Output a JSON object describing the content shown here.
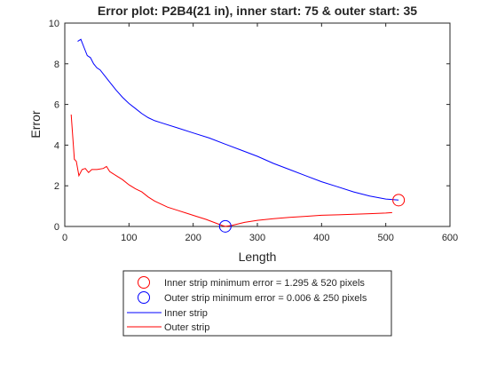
{
  "chart_data": {
    "type": "line",
    "title": "Error plot: P2B4(21 in), inner start: 75 & outer start: 35",
    "xlabel": "Length",
    "ylabel": "Error",
    "xlim": [
      0,
      600
    ],
    "ylim": [
      0,
      10
    ],
    "x_ticks": [
      0,
      100,
      200,
      300,
      400,
      500,
      600
    ],
    "y_ticks": [
      0,
      2,
      4,
      6,
      8,
      10
    ],
    "grid": false,
    "legend_position": "bottom-outside",
    "colors": {
      "inner": "#0000ff",
      "outer": "#ff0000",
      "axes": "#262626"
    },
    "series": [
      {
        "name": "Inner strip",
        "color": "#0000ff",
        "points": [
          [
            20,
            9.1
          ],
          [
            25,
            9.2
          ],
          [
            30,
            8.8
          ],
          [
            35,
            8.4
          ],
          [
            40,
            8.3
          ],
          [
            45,
            8.0
          ],
          [
            50,
            7.8
          ],
          [
            55,
            7.7
          ],
          [
            60,
            7.5
          ],
          [
            70,
            7.1
          ],
          [
            80,
            6.7
          ],
          [
            90,
            6.35
          ],
          [
            100,
            6.05
          ],
          [
            110,
            5.8
          ],
          [
            120,
            5.55
          ],
          [
            130,
            5.35
          ],
          [
            140,
            5.2
          ],
          [
            150,
            5.1
          ],
          [
            175,
            4.85
          ],
          [
            200,
            4.6
          ],
          [
            225,
            4.35
          ],
          [
            250,
            4.05
          ],
          [
            275,
            3.75
          ],
          [
            300,
            3.45
          ],
          [
            325,
            3.1
          ],
          [
            350,
            2.8
          ],
          [
            375,
            2.5
          ],
          [
            400,
            2.2
          ],
          [
            425,
            1.95
          ],
          [
            450,
            1.7
          ],
          [
            475,
            1.5
          ],
          [
            500,
            1.35
          ],
          [
            520,
            1.3
          ]
        ]
      },
      {
        "name": "Outer strip",
        "color": "#ff0000",
        "points": [
          [
            10,
            5.5
          ],
          [
            15,
            3.3
          ],
          [
            18,
            3.2
          ],
          [
            22,
            2.5
          ],
          [
            27,
            2.8
          ],
          [
            32,
            2.85
          ],
          [
            37,
            2.65
          ],
          [
            42,
            2.8
          ],
          [
            50,
            2.8
          ],
          [
            60,
            2.85
          ],
          [
            65,
            2.95
          ],
          [
            70,
            2.7
          ],
          [
            80,
            2.5
          ],
          [
            90,
            2.3
          ],
          [
            100,
            2.05
          ],
          [
            110,
            1.85
          ],
          [
            120,
            1.7
          ],
          [
            130,
            1.45
          ],
          [
            140,
            1.25
          ],
          [
            150,
            1.1
          ],
          [
            160,
            0.95
          ],
          [
            175,
            0.8
          ],
          [
            190,
            0.65
          ],
          [
            205,
            0.5
          ],
          [
            220,
            0.35
          ],
          [
            235,
            0.17
          ],
          [
            245,
            0.05
          ],
          [
            250,
            0.006
          ],
          [
            260,
            0.05
          ],
          [
            280,
            0.2
          ],
          [
            300,
            0.3
          ],
          [
            325,
            0.38
          ],
          [
            350,
            0.45
          ],
          [
            375,
            0.5
          ],
          [
            400,
            0.55
          ],
          [
            425,
            0.57
          ],
          [
            450,
            0.6
          ],
          [
            475,
            0.63
          ],
          [
            500,
            0.66
          ],
          [
            510,
            0.68
          ]
        ]
      }
    ],
    "markers": [
      {
        "label": "Inner strip minimum error = 1.295 & 520 pixels",
        "x": 520,
        "y": 1.295,
        "color": "#ff0000"
      },
      {
        "label": "Outer strip minimum error  = 0.006 & 250 pixels",
        "x": 250,
        "y": 0.006,
        "color": "#0000ff"
      }
    ]
  }
}
